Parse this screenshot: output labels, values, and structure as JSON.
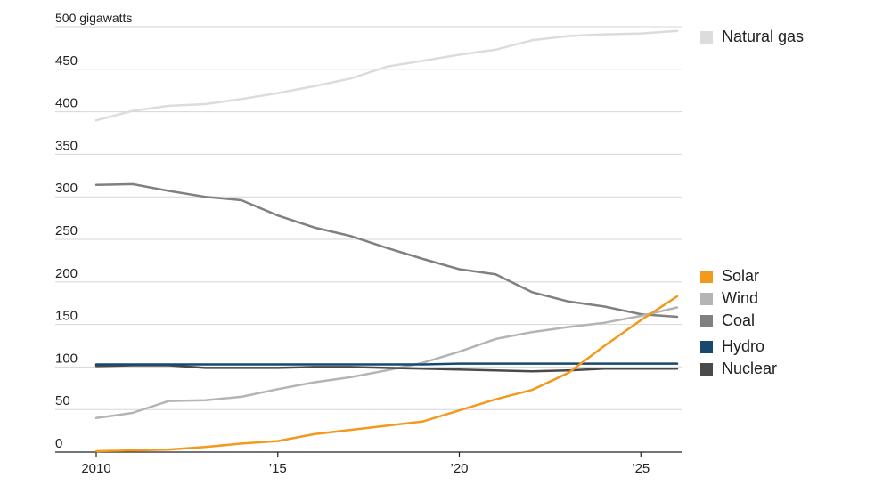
{
  "chart_data": {
    "type": "line",
    "y_unit_label": "500 gigawatts",
    "ylim": [
      0,
      500
    ],
    "y_ticks": [
      {
        "value": 500,
        "label": "500"
      },
      {
        "value": 450,
        "label": "450"
      },
      {
        "value": 400,
        "label": "400"
      },
      {
        "value": 350,
        "label": "350"
      },
      {
        "value": 300,
        "label": "300"
      },
      {
        "value": 250,
        "label": "250"
      },
      {
        "value": 200,
        "label": "200"
      },
      {
        "value": 150,
        "label": "150"
      },
      {
        "value": 100,
        "label": "100"
      },
      {
        "value": 50,
        "label": "50"
      },
      {
        "value": 0,
        "label": "0"
      }
    ],
    "xlim": [
      2010,
      2026
    ],
    "x_ticks": [
      {
        "value": 2010,
        "label": "2010"
      },
      {
        "value": 2015,
        "label": "’15"
      },
      {
        "value": 2020,
        "label": "’20"
      },
      {
        "value": 2025,
        "label": "’25"
      }
    ],
    "grid": true,
    "legend_placement": "right",
    "x": [
      2010,
      2011,
      2012,
      2013,
      2014,
      2015,
      2016,
      2017,
      2018,
      2019,
      2020,
      2021,
      2022,
      2023,
      2024,
      2025,
      2026
    ],
    "series": [
      {
        "name": "Natural gas",
        "color": "#dcdcdc",
        "width": 2.5,
        "values": [
          390,
          401,
          407,
          409,
          415,
          422,
          430,
          439,
          453,
          460,
          467,
          473,
          484,
          489,
          491,
          492,
          495
        ]
      },
      {
        "name": "Coal",
        "color": "#808080",
        "width": 2.5,
        "values": [
          314,
          315,
          307,
          300,
          296,
          278,
          264,
          254,
          240,
          227,
          215,
          209,
          188,
          177,
          171,
          162,
          159
        ]
      },
      {
        "name": "Wind",
        "color": "#b4b4b4",
        "width": 2.5,
        "values": [
          40,
          46,
          60,
          61,
          65,
          74,
          82,
          88,
          96,
          105,
          118,
          133,
          141,
          147,
          152,
          160,
          170
        ]
      },
      {
        "name": "Nuclear",
        "color": "#4a4a4a",
        "width": 2.5,
        "values": [
          101,
          102,
          102,
          99,
          99,
          99,
          100,
          100,
          99,
          98,
          97,
          96,
          95,
          96,
          98,
          98,
          98
        ]
      },
      {
        "name": "Hydro",
        "color": "#17496f",
        "width": 2.5,
        "values": [
          103,
          103,
          103,
          103,
          103,
          103,
          103,
          103,
          103,
          103,
          104,
          104,
          104,
          104,
          104,
          104,
          104
        ]
      },
      {
        "name": "Solar",
        "color": "#f29a1e",
        "width": 2.5,
        "values": [
          1,
          2,
          3,
          6,
          10,
          13,
          21,
          26,
          31,
          36,
          49,
          62,
          73,
          93,
          125,
          155,
          183
        ]
      }
    ],
    "legend_groups": [
      {
        "items": [
          "Natural gas"
        ]
      },
      {
        "items": [
          "Solar",
          "Wind",
          "Coal",
          "Hydro",
          "Nuclear"
        ]
      }
    ]
  }
}
